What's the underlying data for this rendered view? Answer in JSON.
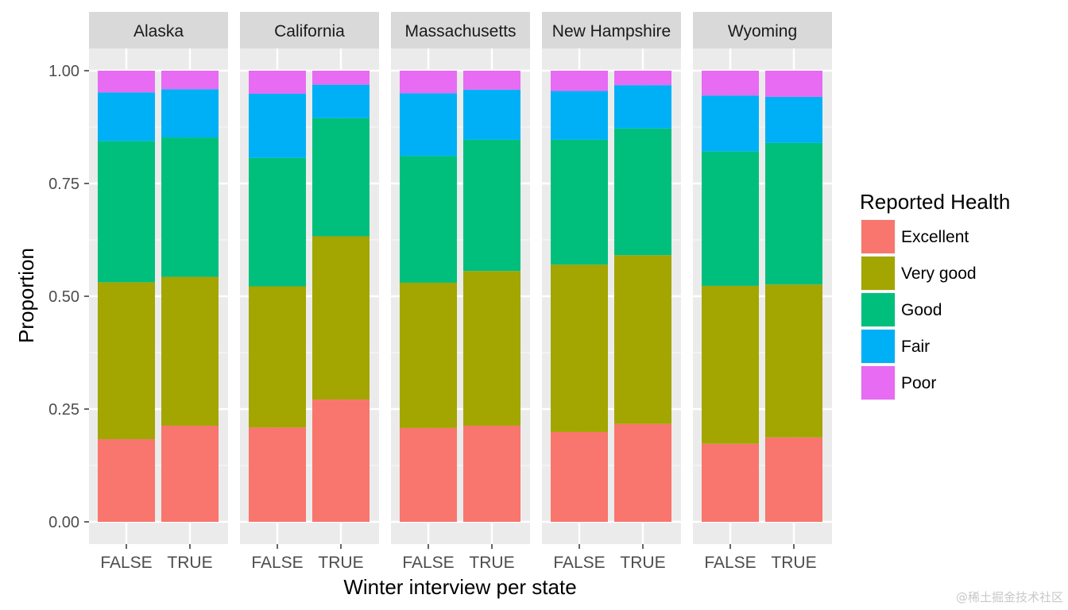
{
  "chart_data": {
    "type": "bar",
    "stacked": true,
    "position": "fill",
    "facets": [
      "Alaska",
      "California",
      "Massachusetts",
      "New Hampshire",
      "Wyoming"
    ],
    "categories": [
      "FALSE",
      "TRUE"
    ],
    "xlabel": "Winter interview per state",
    "ylabel": "Proportion",
    "ylim": [
      0,
      1
    ],
    "yticks": [
      "0.00",
      "0.25",
      "0.50",
      "0.75",
      "1.00"
    ],
    "grid": true,
    "legend": {
      "title": "Reported Health",
      "placement": "right",
      "entries": [
        "Excellent",
        "Very good",
        "Good",
        "Fair",
        "Poor"
      ]
    },
    "colors": {
      "Excellent": "#F8766D",
      "Very good": "#A3A500",
      "Good": "#00BF7D",
      "Fair": "#00B0F6",
      "Poor": "#E76BF3"
    },
    "series": [
      {
        "name": "Excellent",
        "values": [
          [
            0.183,
            0.213
          ],
          [
            0.209,
            0.271
          ],
          [
            0.208,
            0.213
          ],
          [
            0.199,
            0.217
          ],
          [
            0.173,
            0.187
          ]
        ]
      },
      {
        "name": "Very good",
        "values": [
          [
            0.348,
            0.33
          ],
          [
            0.313,
            0.362
          ],
          [
            0.322,
            0.343
          ],
          [
            0.371,
            0.374
          ],
          [
            0.35,
            0.339
          ]
        ]
      },
      {
        "name": "Good",
        "values": [
          [
            0.313,
            0.309
          ],
          [
            0.285,
            0.262
          ],
          [
            0.281,
            0.291
          ],
          [
            0.277,
            0.281
          ],
          [
            0.298,
            0.314
          ]
        ]
      },
      {
        "name": "Fair",
        "values": [
          [
            0.108,
            0.107
          ],
          [
            0.142,
            0.074
          ],
          [
            0.139,
            0.111
          ],
          [
            0.108,
            0.096
          ],
          [
            0.124,
            0.102
          ]
        ]
      },
      {
        "name": "Poor",
        "values": [
          [
            0.048,
            0.041
          ],
          [
            0.051,
            0.031
          ],
          [
            0.05,
            0.042
          ],
          [
            0.045,
            0.032
          ],
          [
            0.055,
            0.058
          ]
        ]
      }
    ]
  },
  "watermark": "@稀土掘金技术社区"
}
